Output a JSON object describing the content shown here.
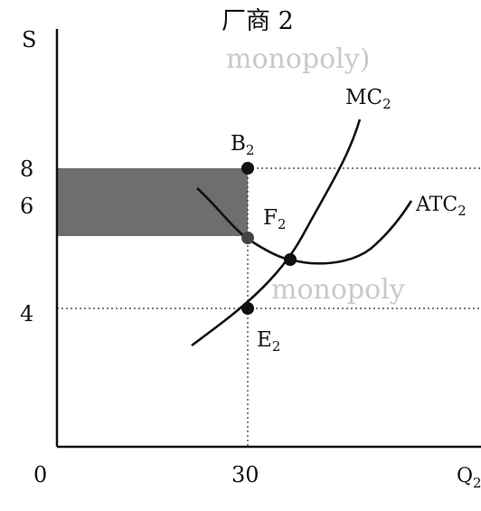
{
  "title": "厂商 2",
  "axes": {
    "y_label": "S",
    "x_label": "Q",
    "x_label_sub": "2",
    "origin_label": "0",
    "y_ticks": [
      "8",
      "6",
      "4"
    ],
    "x_ticks": [
      "30"
    ]
  },
  "curves": {
    "mc": {
      "name": "MC",
      "sub": "2"
    },
    "atc": {
      "name": "ATC",
      "sub": "2"
    }
  },
  "points": {
    "b": {
      "name": "B",
      "sub": "2"
    },
    "f": {
      "name": "F",
      "sub": "2"
    },
    "e": {
      "name": "E",
      "sub": "2"
    }
  },
  "background_text": [
    "monopoly)",
    "monopoly"
  ],
  "colors": {
    "ink": "#111111",
    "shaded": "#6e6e6e"
  }
}
